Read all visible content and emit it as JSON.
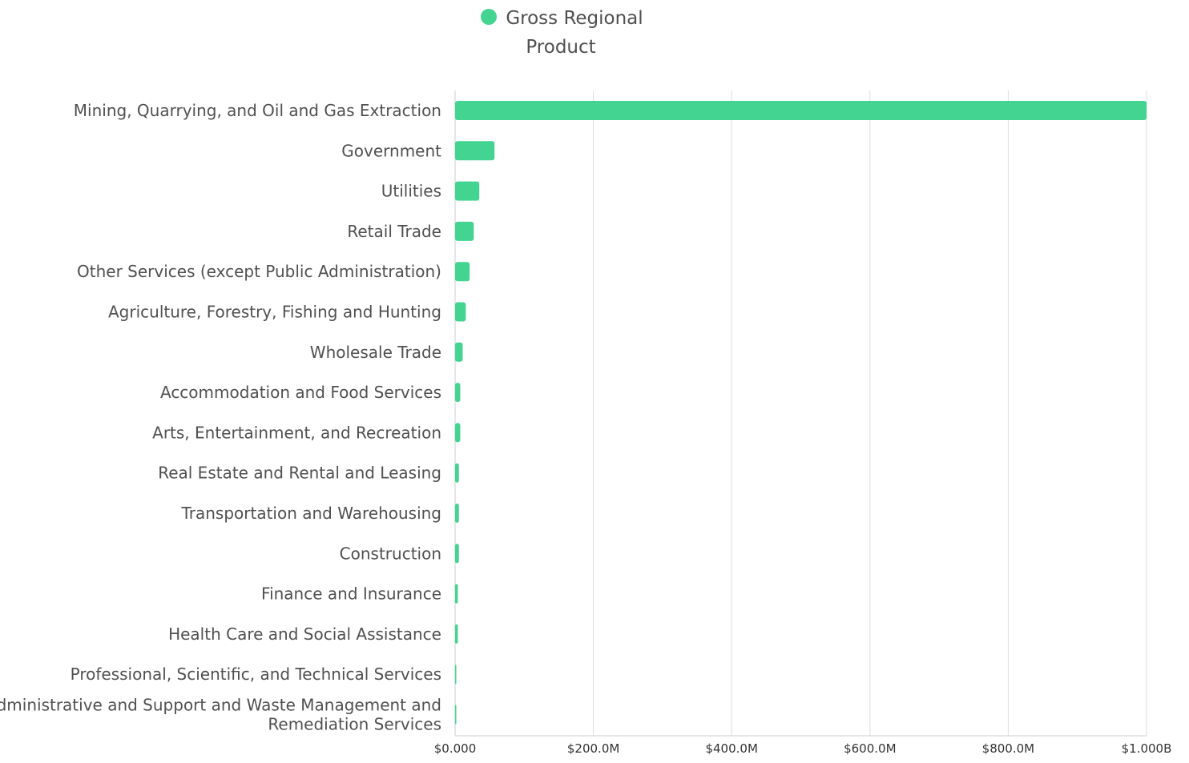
{
  "chart_data": {
    "type": "bar",
    "orientation": "horizontal",
    "categories": [
      "Mining, Quarrying, and Oil and Gas Extraction",
      "Government",
      "Utilities",
      "Retail Trade",
      "Other Services (except Public Administration)",
      "Agriculture, Forestry, Fishing and Hunting",
      "Wholesale Trade",
      "Accommodation and Food Services",
      "Arts, Entertainment, and Recreation",
      "Real Estate and Rental and Leasing",
      "Transportation and Warehousing",
      "Construction",
      "Finance and Insurance",
      "Health Care and Social Assistance",
      "Professional, Scientific, and Technical Services",
      "Administrative and Support and Waste Management and Remediation Services"
    ],
    "category_lines": [
      [
        "Mining, Quarrying, and Oil and Gas Extraction"
      ],
      [
        "Government"
      ],
      [
        "Utilities"
      ],
      [
        "Retail Trade"
      ],
      [
        "Other Services (except Public Administration)"
      ],
      [
        "Agriculture, Forestry, Fishing and Hunting"
      ],
      [
        "Wholesale Trade"
      ],
      [
        "Accommodation and Food Services"
      ],
      [
        "Arts, Entertainment, and Recreation"
      ],
      [
        "Real Estate and Rental and Leasing"
      ],
      [
        "Transportation and Warehousing"
      ],
      [
        "Construction"
      ],
      [
        "Finance and Insurance"
      ],
      [
        "Health Care and Social Assistance"
      ],
      [
        "Professional, Scientific, and Technical Services"
      ],
      [
        "Administrative and Support and Waste Management and",
        "Remediation Services"
      ]
    ],
    "series": [
      {
        "name": "Gross Regional Product",
        "name_lines": [
          "Gross Regional",
          "Product"
        ],
        "color": "#44d492",
        "values": [
          1000000000,
          57000000,
          35000000,
          27000000,
          21000000,
          15500000,
          11000000,
          7500000,
          7500000,
          5500000,
          5500000,
          5500000,
          4000000,
          4000000,
          1500000,
          1000000
        ]
      }
    ],
    "xlim": [
      0,
      1000000000
    ],
    "x_ticks": [
      0,
      200000000,
      400000000,
      600000000,
      800000000,
      1000000000
    ],
    "x_tick_labels": [
      "$0.000",
      "$200.0M",
      "$400.0M",
      "$600.0M",
      "$800.0M",
      "$1.000B"
    ],
    "title": "",
    "xlabel": "",
    "ylabel": "",
    "grid": "vertical",
    "legend": "top-center",
    "gridline_color": "#dcdcdc",
    "axis_color": "#cccccc"
  }
}
